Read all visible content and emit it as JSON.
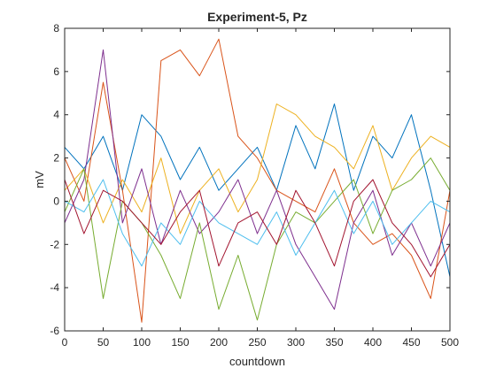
{
  "chart_data": {
    "type": "line",
    "title": "Experiment-5, Pz",
    "xlabel": "countdown",
    "ylabel": "mV",
    "xlim": [
      0,
      500
    ],
    "ylim": [
      -6,
      8
    ],
    "xticks": [
      0,
      50,
      100,
      150,
      200,
      250,
      300,
      350,
      400,
      450,
      500
    ],
    "yticks": [
      -6,
      -4,
      -2,
      0,
      2,
      4,
      6,
      8
    ],
    "grid": false,
    "legend": "none",
    "colors": [
      "#0072BD",
      "#D95319",
      "#EDB120",
      "#7E2F8E",
      "#77AC30",
      "#4DBEEE",
      "#A2142F"
    ],
    "series": [
      {
        "color": "#0072BD",
        "x": [
          0,
          25,
          50,
          75,
          100,
          125,
          150,
          175,
          200,
          225,
          250,
          275,
          300,
          325,
          350,
          375,
          400,
          425,
          450,
          475,
          500
        ],
        "values": [
          2.5,
          1.5,
          3.0,
          0.5,
          4.0,
          3.0,
          1.0,
          2.5,
          0.5,
          1.5,
          2.5,
          0.5,
          3.5,
          1.5,
          4.5,
          0.5,
          3.0,
          2.0,
          4.0,
          0.5,
          -3.5
        ]
      },
      {
        "color": "#D95319",
        "x": [
          0,
          25,
          50,
          75,
          100,
          125,
          150,
          175,
          200,
          225,
          250,
          275,
          300,
          325,
          350,
          375,
          400,
          425,
          450,
          475,
          500
        ],
        "values": [
          2.0,
          0.0,
          5.5,
          0.5,
          -5.6,
          6.5,
          7.0,
          5.8,
          7.5,
          3.0,
          2.0,
          0.5,
          0.0,
          -0.5,
          1.5,
          -1.0,
          -2.0,
          -1.5,
          -2.5,
          -4.5,
          0.5
        ]
      },
      {
        "color": "#EDB120",
        "x": [
          0,
          25,
          50,
          75,
          100,
          125,
          150,
          175,
          200,
          225,
          250,
          275,
          300,
          325,
          350,
          375,
          400,
          425,
          450,
          475,
          500
        ],
        "values": [
          0.5,
          1.5,
          -1.0,
          1.0,
          -0.5,
          2.0,
          -1.5,
          0.5,
          1.5,
          -0.5,
          1.0,
          4.5,
          4.0,
          3.0,
          2.5,
          1.5,
          3.5,
          0.5,
          2.0,
          3.0,
          2.5
        ]
      },
      {
        "color": "#7E2F8E",
        "x": [
          0,
          25,
          50,
          75,
          100,
          125,
          150,
          175,
          200,
          225,
          250,
          275,
          300,
          325,
          350,
          375,
          400,
          425,
          450,
          475,
          500
        ],
        "values": [
          -1.0,
          1.0,
          7.0,
          -1.0,
          1.5,
          -2.0,
          0.5,
          -1.5,
          -0.5,
          1.0,
          -1.5,
          0.5,
          -2.0,
          -3.5,
          -5.0,
          -1.0,
          0.5,
          -2.5,
          -1.0,
          -3.0,
          -1.0
        ]
      },
      {
        "color": "#77AC30",
        "x": [
          0,
          25,
          50,
          75,
          100,
          125,
          150,
          175,
          200,
          225,
          250,
          275,
          300,
          325,
          350,
          375,
          400,
          425,
          450,
          475,
          500
        ],
        "values": [
          -0.5,
          1.5,
          -4.5,
          0.0,
          -1.0,
          -2.5,
          -4.5,
          -1.0,
          -5.0,
          -2.5,
          -5.5,
          -2.0,
          -0.5,
          -1.0,
          0.0,
          1.0,
          -1.5,
          0.5,
          1.0,
          2.0,
          0.5
        ]
      },
      {
        "color": "#4DBEEE",
        "x": [
          0,
          25,
          50,
          75,
          100,
          125,
          150,
          175,
          200,
          225,
          250,
          275,
          300,
          325,
          350,
          375,
          400,
          425,
          450,
          475,
          500
        ],
        "values": [
          0.0,
          -0.5,
          1.0,
          -1.5,
          -3.0,
          -1.0,
          -2.0,
          0.0,
          -1.0,
          -1.5,
          -2.0,
          -0.5,
          -2.5,
          -1.0,
          0.5,
          -1.5,
          0.0,
          -2.0,
          -1.0,
          0.0,
          -0.5
        ]
      },
      {
        "color": "#A2142F",
        "x": [
          0,
          25,
          50,
          75,
          100,
          125,
          150,
          175,
          200,
          225,
          250,
          275,
          300,
          325,
          350,
          375,
          400,
          425,
          450,
          475,
          500
        ],
        "values": [
          1.0,
          -1.5,
          0.5,
          0.0,
          -1.0,
          -2.0,
          -0.5,
          0.5,
          -3.0,
          -1.0,
          -0.5,
          -2.0,
          0.5,
          -1.0,
          -3.0,
          0.0,
          1.0,
          -1.0,
          -2.0,
          -3.5,
          -2.0
        ]
      }
    ]
  }
}
